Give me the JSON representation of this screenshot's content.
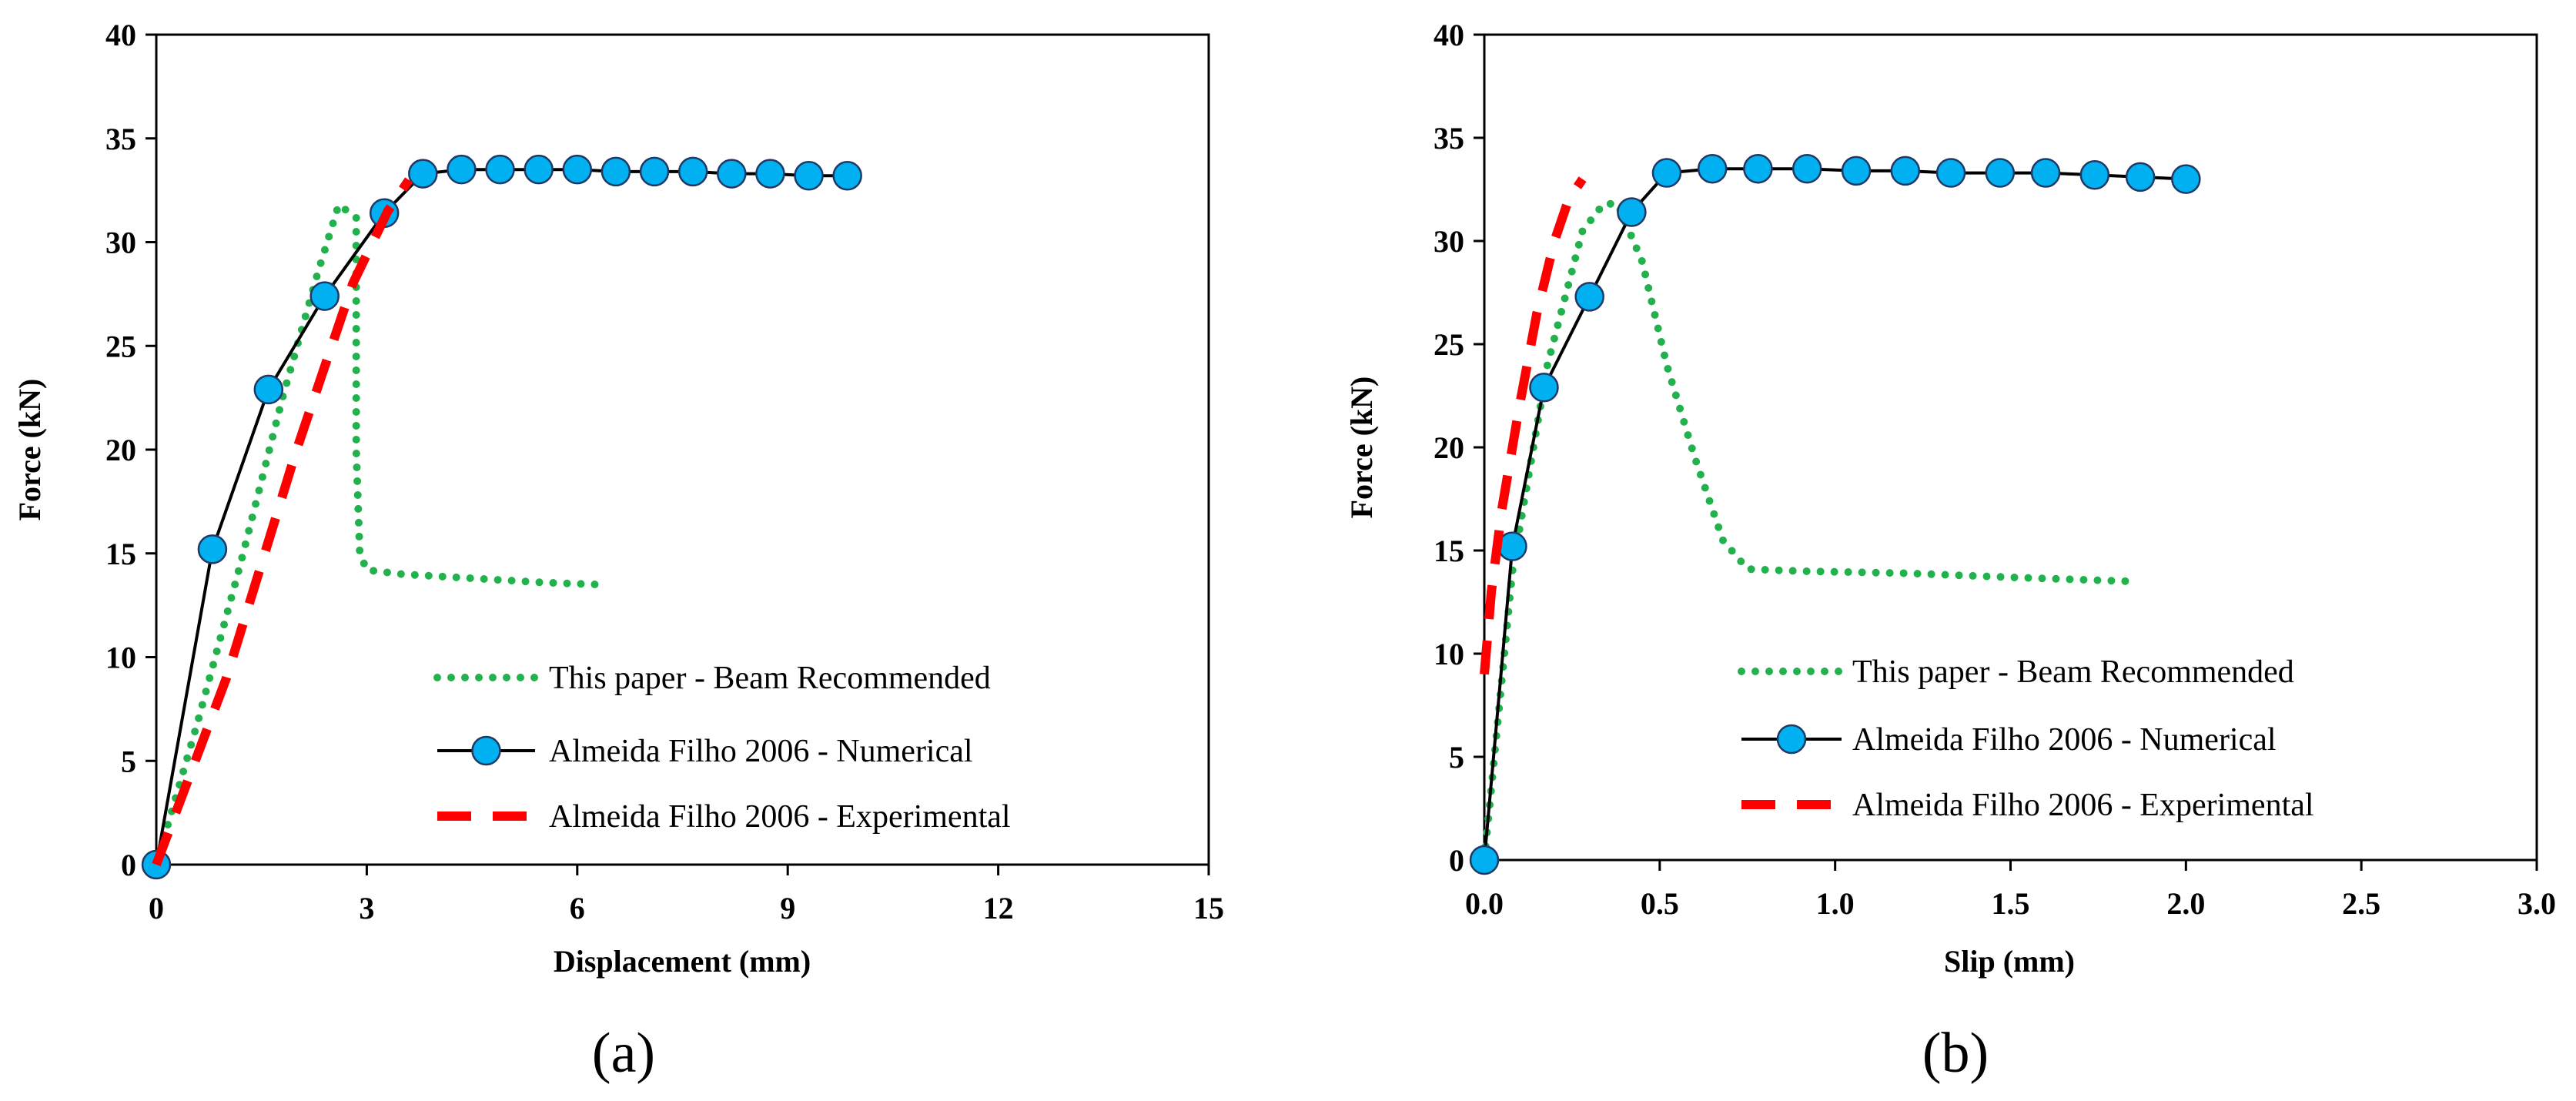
{
  "figure": {
    "panels": [
      "(a)",
      "(b)"
    ]
  },
  "colors": {
    "beam": "#22b14c",
    "numerical": "#00b0f0",
    "numerical_line": "#000000",
    "experimental": "#ff0000"
  },
  "chart_data": [
    {
      "type": "line",
      "panel": "(a)",
      "title": "",
      "xlabel": "Displacement (mm)",
      "ylabel": "Force (kN)",
      "xlim": [
        0,
        15
      ],
      "ylim": [
        0,
        40
      ],
      "xticks": [
        0,
        3,
        6,
        9,
        12,
        15
      ],
      "yticks": [
        0,
        5,
        10,
        15,
        20,
        25,
        30,
        35,
        40
      ],
      "xtick_labels": [
        "0",
        "3",
        "6",
        "9",
        "12",
        "15"
      ],
      "ytick_labels": [
        "0",
        "5",
        "10",
        "15",
        "20",
        "25",
        "30",
        "35",
        "40"
      ],
      "grid": false,
      "legend": "bottom-right",
      "series": [
        {
          "name": "This paper - Beam Recommended",
          "style": "dotted",
          "x": [
            0,
            0.6,
            1.2,
            1.8,
            2.3,
            2.6,
            2.85,
            2.85,
            2.9,
            3.0,
            3.5,
            4.5,
            5.5,
            6.3
          ],
          "y": [
            0,
            7,
            14.5,
            22.5,
            28.5,
            31.8,
            31.2,
            20,
            15,
            14.2,
            14.0,
            13.8,
            13.6,
            13.5
          ]
        },
        {
          "name": "Almeida Filho 2006 - Numerical",
          "style": "line-marker",
          "x": [
            0,
            0.8,
            1.6,
            2.4,
            3.25,
            3.8,
            4.35,
            4.9,
            5.45,
            6.0,
            6.55,
            7.1,
            7.65,
            8.2,
            8.75,
            9.3,
            9.85
          ],
          "y": [
            0,
            15.2,
            22.9,
            27.4,
            31.4,
            33.3,
            33.5,
            33.5,
            33.5,
            33.5,
            33.4,
            33.4,
            33.4,
            33.3,
            33.3,
            33.2,
            33.2
          ]
        },
        {
          "name": "Almeida Filho 2006 - Experimental",
          "style": "dashed",
          "x": [
            0,
            1.0,
            2.0,
            2.8,
            3.3,
            3.6
          ],
          "y": [
            0,
            9,
            20,
            28,
            31.5,
            33
          ]
        }
      ]
    },
    {
      "type": "line",
      "panel": "(b)",
      "title": "",
      "xlabel": "Slip (mm)",
      "ylabel": "Force (kN)",
      "xlim": [
        0,
        3
      ],
      "ylim": [
        0,
        40
      ],
      "xticks": [
        0,
        0.5,
        1.0,
        1.5,
        2.0,
        2.5,
        3.0
      ],
      "yticks": [
        0,
        5,
        10,
        15,
        20,
        25,
        30,
        35,
        40
      ],
      "xtick_labels": [
        "0.0",
        "0.5",
        "1.0",
        "1.5",
        "2.0",
        "2.5",
        "3.0"
      ],
      "ytick_labels": [
        "0",
        "5",
        "10",
        "15",
        "20",
        "25",
        "30",
        "35",
        "40"
      ],
      "grid": false,
      "legend": "bottom-right",
      "series": [
        {
          "name": "This paper - Beam Recommended",
          "style": "dotted",
          "x": [
            0,
            0.08,
            0.18,
            0.28,
            0.34,
            0.38,
            0.45,
            0.52,
            0.6,
            0.68,
            0.75,
            0.9,
            1.2,
            1.5,
            1.85
          ],
          "y": [
            0,
            14,
            24,
            30.5,
            31.8,
            31.8,
            29,
            24,
            19.5,
            15.5,
            14.1,
            14.0,
            13.9,
            13.7,
            13.5
          ]
        },
        {
          "name": "Almeida Filho 2006 - Numerical",
          "style": "line-marker",
          "x": [
            0,
            0.08,
            0.17,
            0.3,
            0.42,
            0.52,
            0.65,
            0.78,
            0.92,
            1.06,
            1.2,
            1.33,
            1.47,
            1.6,
            1.74,
            1.87,
            2.0
          ],
          "y": [
            0,
            15.2,
            22.9,
            27.3,
            31.4,
            33.3,
            33.5,
            33.5,
            33.5,
            33.4,
            33.4,
            33.3,
            33.3,
            33.3,
            33.2,
            33.1,
            33.0
          ]
        },
        {
          "name": "Almeida Filho 2006 - Experimental",
          "style": "dashed",
          "x": [
            0,
            0.02,
            0.05,
            0.1,
            0.15,
            0.2,
            0.24,
            0.28
          ],
          "y": [
            9,
            13,
            17,
            22,
            26.5,
            30,
            32,
            33
          ]
        }
      ]
    }
  ]
}
